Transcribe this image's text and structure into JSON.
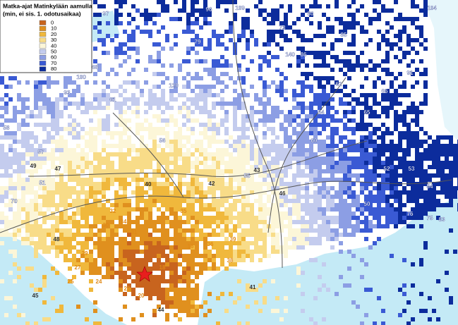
{
  "legend": {
    "title_line1": "Matka-ajat Matinkylään aamulla",
    "title_line2": "(min, ei sis. 1. odotusaikaa)",
    "items": [
      {
        "label": "0",
        "color": "#c8641e"
      },
      {
        "label": "10",
        "color": "#e0901e"
      },
      {
        "label": "20",
        "color": "#f0b83c"
      },
      {
        "label": "30",
        "color": "#f8dc88"
      },
      {
        "label": "40",
        "color": "#fcf6d8"
      },
      {
        "label": "50",
        "color": "#c4ccee"
      },
      {
        "label": "60",
        "color": "#8c9ee4"
      },
      {
        "label": "70",
        "color": "#3a5ad4"
      },
      {
        "label": "80",
        "color": "#0c2c9c"
      }
    ]
  },
  "map_labels": [
    "97",
    "96",
    "109",
    "104",
    "85",
    "140",
    "86",
    "91",
    "120",
    "93",
    "100",
    "68",
    "61",
    "57",
    "58",
    "51",
    "47",
    "45",
    "41",
    "44",
    "40",
    "42",
    "43",
    "46",
    "49",
    "50",
    "52",
    "53",
    "55",
    "60",
    "64",
    "66",
    "70",
    "75",
    "76",
    "84",
    "83",
    "38",
    "36",
    "34",
    "32",
    "30",
    "29",
    "27",
    "25",
    "24",
    "22",
    "20",
    "18",
    "16",
    "31",
    "35",
    "39",
    "48",
    "56",
    "62",
    "65",
    "73",
    "79",
    "80"
  ]
}
